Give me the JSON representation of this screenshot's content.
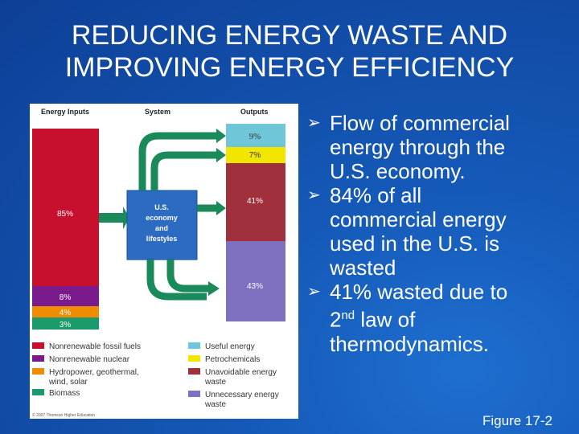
{
  "slide": {
    "title_line1": "REDUCING ENERGY WASTE AND",
    "title_line2": "IMPROVING ENERGY EFFICIENCY",
    "bullets": [
      {
        "lines": [
          "Flow of commercial",
          "energy through the",
          "U.S. economy."
        ]
      },
      {
        "lines": [
          "84% of all",
          "commercial energy",
          "used in the U.S. is",
          "wasted"
        ]
      },
      {
        "lines": [
          "41% wasted due to"
        ],
        "line2_sup": "nd",
        "line2_pre": "2",
        "line2_post": " law of",
        "line3": "thermodynamics."
      }
    ],
    "figure_ref": "Figure 17-2"
  },
  "diagram": {
    "headers": {
      "inputs": "Energy Inputs",
      "system": "System",
      "outputs": "Outputs"
    },
    "system_box": [
      "U.S.",
      "economy",
      "and",
      "lifestyles"
    ],
    "inputs": [
      {
        "label": "85%",
        "color": "#c8102e"
      },
      {
        "label": "8%",
        "color": "#7b1a8c"
      },
      {
        "label": "4%",
        "color": "#f08c00"
      },
      {
        "label": "3%",
        "color": "#1a9a6a"
      }
    ],
    "outputs": [
      {
        "label": "9%",
        "color": "#6ec6d8"
      },
      {
        "label": "7%",
        "color": "#f2e600"
      },
      {
        "label": "41%",
        "color": "#a0303c"
      },
      {
        "label": "43%",
        "color": "#8070c0"
      }
    ],
    "legend": [
      {
        "label": "Nonrenewable fossil fuels",
        "color": "#c8102e"
      },
      {
        "label": "Nonrenewable nuclear",
        "color": "#7b1a8c"
      },
      {
        "label": "Hydropower, geothermal,",
        "label2": "wind, solar",
        "color": "#f08c00"
      },
      {
        "label": "Biomass",
        "color": "#1a9a6a"
      },
      {
        "label": "Useful energy",
        "color": "#6ec6d8"
      },
      {
        "label": "Petrochemicals",
        "color": "#f2e600"
      },
      {
        "label": "Unavoidable energy",
        "label2": "waste",
        "color": "#a0303c"
      },
      {
        "label": "Unnecessary energy",
        "label2": "waste",
        "color": "#8070c0"
      }
    ],
    "copyright": "© 2007 Thomson Higher Education"
  }
}
